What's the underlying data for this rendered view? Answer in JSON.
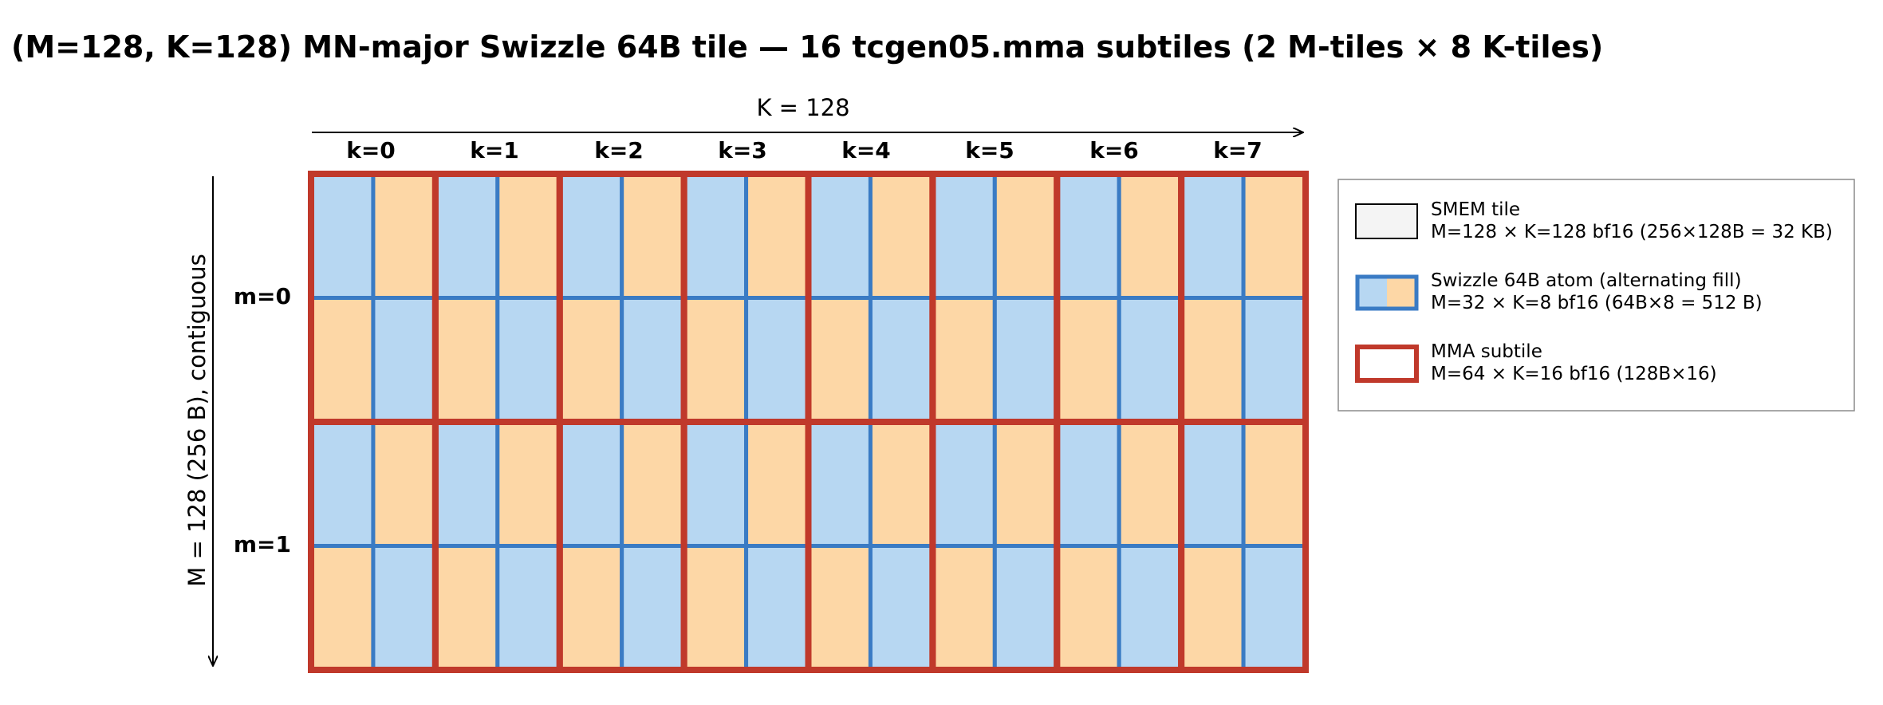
{
  "title": "(M=128, K=128) MN-major Swizzle 64B tile — 16 tcgen05.mma subtiles (2 M-tiles × 8 K-tiles)",
  "k_axis_label": "K = 128",
  "m_axis_label": "M = 128 (256 B), contiguous",
  "k_labels": [
    "k=0",
    "k=1",
    "k=2",
    "k=3",
    "k=4",
    "k=5",
    "k=6",
    "k=7"
  ],
  "m_labels": [
    "m=0",
    "m=1"
  ],
  "grid": {
    "m_tiles": 2,
    "k_tiles": 8,
    "atom_rows_per_tile": 2,
    "atom_cols_per_tile": 2
  },
  "colors": {
    "fill_blue": "#b7d7f2",
    "fill_orange": "#fdd7a6",
    "atom_border": "#3a7bc4",
    "mma_border": "#c0392b",
    "smem_fill": "#f4f4f4",
    "smem_border": "#000000",
    "legend_border": "#8c8c8c"
  },
  "legend": [
    {
      "key": "smem",
      "line1": "SMEM tile",
      "line2": "M=128 × K=128 bf16 (256×128B = 32 KB)"
    },
    {
      "key": "atom",
      "line1": "Swizzle 64B atom (alternating fill)",
      "line2": "M=32 × K=8 bf16 (64B×8 = 512 B)"
    },
    {
      "key": "mma",
      "line1": "MMA subtile",
      "line2": "M=64 × K=16 bf16 (128B×16)"
    }
  ]
}
